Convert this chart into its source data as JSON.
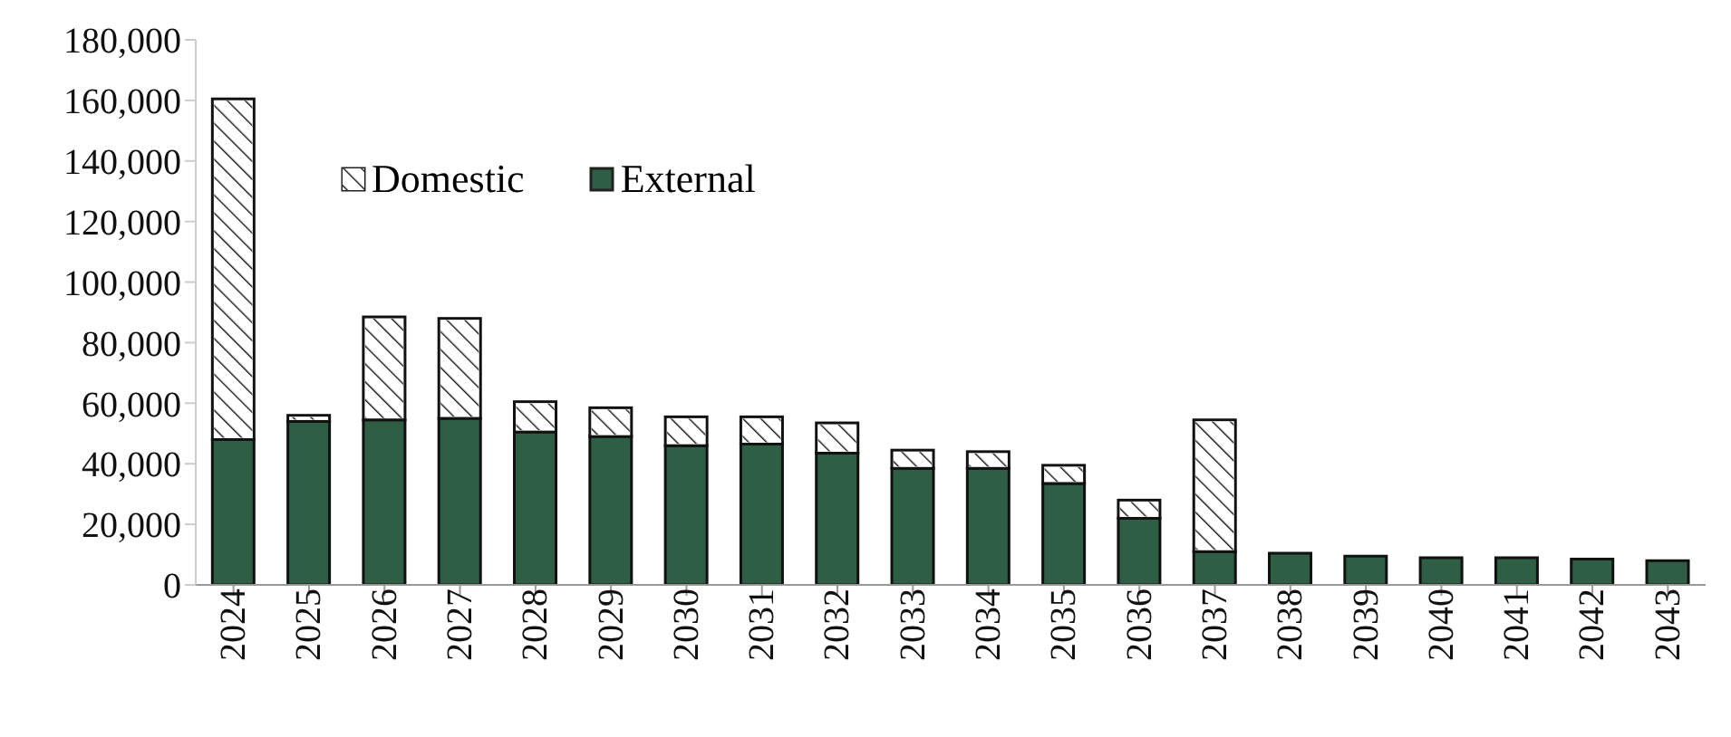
{
  "chart_data": {
    "type": "bar",
    "stacked": true,
    "categories": [
      "2024",
      "2025",
      "2026",
      "2027",
      "2028",
      "2029",
      "2030",
      "2031",
      "2032",
      "2033",
      "2034",
      "2035",
      "2036",
      "2037",
      "2038",
      "2039",
      "2040",
      "2041",
      "2042",
      "2043"
    ],
    "series": [
      {
        "name": "External",
        "color": "#2e5e44",
        "values": [
          48000,
          54000,
          54500,
          55000,
          50500,
          49000,
          46000,
          46500,
          43500,
          38500,
          38500,
          33500,
          22000,
          11000,
          10500,
          9500,
          9000,
          9000,
          8500,
          8000
        ]
      },
      {
        "name": "Domestic",
        "color": "#ffffff",
        "values": [
          112500,
          2000,
          34000,
          33000,
          10000,
          9500,
          9500,
          9000,
          10000,
          6000,
          5500,
          6000,
          6000,
          43500,
          0,
          0,
          0,
          0,
          0,
          0
        ]
      }
    ],
    "ylim": [
      0,
      180000
    ],
    "yticks": [
      0,
      {
        "value": 20000,
        "label": "20,000"
      },
      {
        "value": 40000,
        "label": "40,000"
      },
      {
        "value": 60000,
        "label": "60,000"
      },
      {
        "value": 80000,
        "label": "80,000"
      },
      {
        "value": 100000,
        "label": "100,000"
      },
      {
        "value": 120000,
        "label": "120,000"
      },
      {
        "value": 140000,
        "label": "140,000"
      },
      {
        "value": 160000,
        "label": "160,000"
      },
      {
        "value": 180000,
        "label": "180,000"
      }
    ],
    "legend": "top left"
  }
}
